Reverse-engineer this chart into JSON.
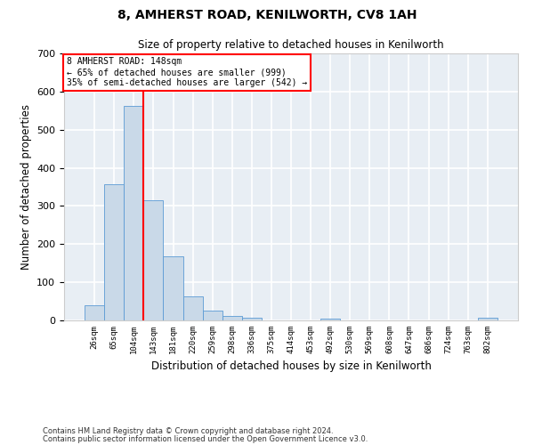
{
  "title": "8, AMHERST ROAD, KENILWORTH, CV8 1AH",
  "subtitle": "Size of property relative to detached houses in Kenilworth",
  "xlabel": "Distribution of detached houses by size in Kenilworth",
  "ylabel": "Number of detached properties",
  "bar_color": "#c9d9e8",
  "bar_edge_color": "#5b9bd5",
  "vline_color": "red",
  "bin_labels": [
    "26sqm",
    "65sqm",
    "104sqm",
    "143sqm",
    "181sqm",
    "220sqm",
    "259sqm",
    "298sqm",
    "336sqm",
    "375sqm",
    "414sqm",
    "453sqm",
    "492sqm",
    "530sqm",
    "569sqm",
    "608sqm",
    "647sqm",
    "686sqm",
    "724sqm",
    "763sqm",
    "802sqm"
  ],
  "bar_heights": [
    40,
    357,
    562,
    315,
    168,
    62,
    25,
    12,
    8,
    0,
    0,
    0,
    5,
    0,
    0,
    0,
    0,
    0,
    0,
    0,
    6
  ],
  "ylim": [
    0,
    700
  ],
  "yticks": [
    0,
    100,
    200,
    300,
    400,
    500,
    600,
    700
  ],
  "annotation_text": "8 AMHERST ROAD: 148sqm\n← 65% of detached houses are smaller (999)\n35% of semi-detached houses are larger (542) →",
  "annotation_box_color": "red",
  "footer_line1": "Contains HM Land Registry data © Crown copyright and database right 2024.",
  "footer_line2": "Contains public sector information licensed under the Open Government Licence v3.0.",
  "background_color": "#e8eef4",
  "grid_color": "#ffffff",
  "fig_facecolor": "#ffffff",
  "vline_x_index": 2.5
}
